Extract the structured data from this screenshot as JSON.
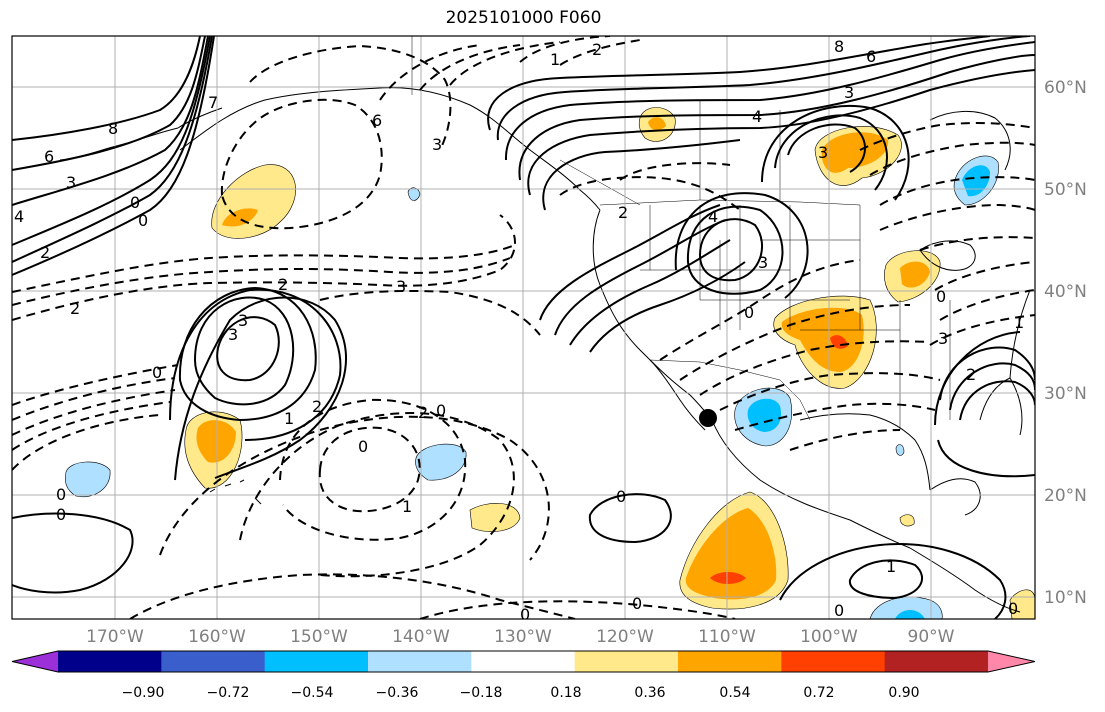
{
  "title": "2025101000 F060",
  "lat_labels": [
    "60°N",
    "50°N",
    "40°N",
    "30°N",
    "20°N",
    "10°N"
  ],
  "lon_labels": [
    "170°W",
    "160°W",
    "150°W",
    "140°W",
    "130°W",
    "120°W",
    "110°W",
    "100°W",
    "90°W"
  ],
  "colorbar": {
    "ticks": [
      "−0.90",
      "−0.72",
      "−0.54",
      "−0.36",
      "−0.18",
      "0.18",
      "0.36",
      "0.54",
      "0.72",
      "0.90"
    ],
    "colors": [
      "#9b30d9",
      "#00008b",
      "#3a5fcd",
      "#00bfff",
      "#afe0ff",
      "#ffffff",
      "#ffe98a",
      "#ffa500",
      "#ff4000",
      "#b22222",
      "#ff88aa"
    ]
  },
  "contour_labels": [
    "2",
    "1",
    "8",
    "6",
    "6",
    "3",
    "4",
    "3",
    "8",
    "7",
    "6",
    "3",
    "3",
    "4",
    "2",
    "2",
    "2",
    "4",
    "3",
    "0",
    "0",
    "2",
    "3",
    "3",
    "3",
    "0",
    "3",
    "2",
    "0",
    "1",
    "0",
    "1",
    "2",
    "2",
    "0",
    "0",
    "1",
    "0",
    "0",
    "0",
    "1",
    "0"
  ],
  "colors": {
    "frame": "#000000",
    "grid": "#b0b0b0",
    "axis_text": "#808080",
    "contour": "#000000",
    "marker": "#000000"
  }
}
